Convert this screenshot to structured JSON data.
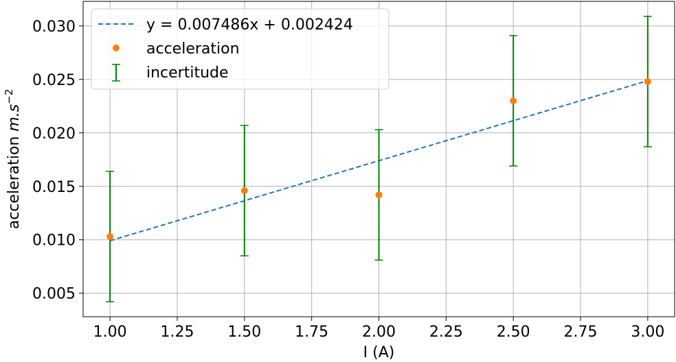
{
  "chart_data": {
    "type": "scatter",
    "xlabel": "I (A)",
    "ylabel": "acceleration",
    "ylabel_unit_base": "m.s",
    "ylabel_unit_exp": "−2",
    "xlim": [
      0.9,
      3.1
    ],
    "ylim": [
      0.0028,
      0.0323
    ],
    "x_ticks": [
      1.0,
      1.25,
      1.5,
      1.75,
      2.0,
      2.25,
      2.5,
      2.75,
      3.0
    ],
    "x_tick_labels": [
      "1.00",
      "1.25",
      "1.50",
      "1.75",
      "2.00",
      "2.25",
      "2.50",
      "2.75",
      "3.00"
    ],
    "y_ticks": [
      0.005,
      0.01,
      0.015,
      0.02,
      0.025,
      0.03
    ],
    "y_tick_labels": [
      "0.005",
      "0.010",
      "0.015",
      "0.020",
      "0.025",
      "0.030"
    ],
    "grid": true,
    "legend_position": "top-left",
    "series": [
      {
        "name": "y = 0.007486x + 0.002424",
        "kind": "fit-line",
        "style": "dashed",
        "color": "#1f77b4",
        "x": [
          1.0,
          3.0
        ],
        "y": [
          0.00991,
          0.024882
        ]
      },
      {
        "name": "acceleration",
        "kind": "points",
        "color": "#ff7f0e",
        "x": [
          1.0,
          1.5,
          2.0,
          2.5,
          3.0
        ],
        "y": [
          0.0103,
          0.0146,
          0.0142,
          0.023,
          0.0248
        ]
      },
      {
        "name": "incertitude",
        "kind": "errorbar",
        "color": "#008000",
        "x": [
          1.0,
          1.5,
          2.0,
          2.5,
          3.0
        ],
        "y": [
          0.0103,
          0.0146,
          0.0142,
          0.023,
          0.0248
        ],
        "err": [
          0.0061,
          0.0061,
          0.0061,
          0.0061,
          0.0061
        ]
      }
    ]
  }
}
